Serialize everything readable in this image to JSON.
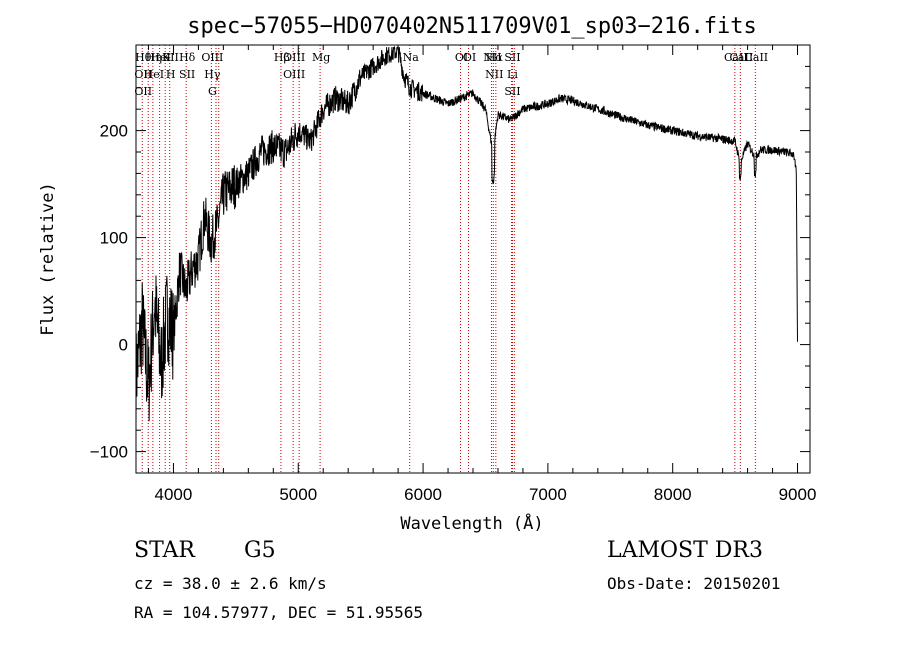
{
  "chart_data": {
    "type": "line",
    "title": "spec−57055−HD070402N511709V01_sp03−216.fits",
    "xlabel": "Wavelength (Å)",
    "ylabel": "Flux (relative)",
    "xlim": [
      3700,
      9100
    ],
    "ylim": [
      -120,
      280
    ],
    "xticks": [
      4000,
      5000,
      6000,
      7000,
      8000,
      9000
    ],
    "yticks": [
      -100,
      0,
      100,
      200
    ],
    "ytick_labels": [
      "−100",
      "0",
      "100",
      "200"
    ],
    "series": [
      {
        "name": "flux",
        "x": [
          3700,
          3750,
          3800,
          3850,
          3900,
          3950,
          4000,
          4050,
          4100,
          4150,
          4200,
          4250,
          4300,
          4350,
          4400,
          4500,
          4600,
          4700,
          4800,
          4900,
          5000,
          5100,
          5200,
          5300,
          5400,
          5500,
          5600,
          5700,
          5800,
          5850,
          5900,
          6000,
          6100,
          6200,
          6300,
          6400,
          6500,
          6560,
          6600,
          6700,
          6800,
          7000,
          7100,
          7200,
          7400,
          7600,
          7800,
          8000,
          8200,
          8400,
          8500,
          8540,
          8600,
          8662,
          8700,
          8800,
          8900,
          8970,
          8990,
          9000
        ],
        "y": [
          -30,
          20,
          -40,
          40,
          -20,
          30,
          10,
          70,
          50,
          70,
          80,
          120,
          95,
          110,
          140,
          150,
          160,
          180,
          185,
          180,
          200,
          190,
          220,
          230,
          225,
          250,
          260,
          270,
          275,
          250,
          240,
          235,
          230,
          225,
          230,
          235,
          220,
          180,
          215,
          210,
          220,
          225,
          230,
          228,
          220,
          212,
          205,
          200,
          195,
          192,
          190,
          170,
          188,
          175,
          182,
          182,
          180,
          178,
          160,
          0
        ]
      }
    ],
    "lines": [
      {
        "wl": 3750,
        "labels": [
          "Hθ",
          "OII",
          "OII"
        ]
      },
      {
        "wl": 3798,
        "labels": []
      },
      {
        "wl": 3835,
        "labels": [
          "Hη",
          "HeI"
        ]
      },
      {
        "wl": 3889,
        "labels": [
          "HeI"
        ]
      },
      {
        "wl": 3934,
        "labels": [
          "K"
        ]
      },
      {
        "wl": 3970,
        "labels": [
          "SII",
          "H"
        ]
      },
      {
        "wl": 4102,
        "labels": [
          "Hδ",
          "SII"
        ]
      },
      {
        "wl": 4304,
        "labels": [
          "OIII",
          "Hγ",
          "G"
        ]
      },
      {
        "wl": 4341,
        "labels": []
      },
      {
        "wl": 4363,
        "labels": []
      },
      {
        "wl": 4861,
        "labels": [
          "Hβ"
        ]
      },
      {
        "wl": 4959,
        "labels": [
          "OIII",
          "OIII"
        ]
      },
      {
        "wl": 5007,
        "labels": []
      },
      {
        "wl": 5175,
        "labels": [
          "Mg"
        ]
      },
      {
        "wl": 5893,
        "labels": [
          "Na"
        ]
      },
      {
        "wl": 6300,
        "labels": [
          "OI"
        ]
      },
      {
        "wl": 6364,
        "labels": [
          "OI"
        ]
      },
      {
        "wl": 6548,
        "labels": [
          "NII"
        ]
      },
      {
        "wl": 6563,
        "labels": [
          "Hα",
          "NII"
        ]
      },
      {
        "wl": 6583,
        "labels": []
      },
      {
        "wl": 6708,
        "labels": [
          "SII",
          "Li",
          "SII"
        ]
      },
      {
        "wl": 6716,
        "labels": []
      },
      {
        "wl": 6731,
        "labels": []
      },
      {
        "wl": 8498,
        "labels": [
          "CaII"
        ]
      },
      {
        "wl": 8542,
        "labels": [
          "CaII"
        ]
      },
      {
        "wl": 8662,
        "labels": [
          "CaII"
        ]
      }
    ]
  },
  "info": {
    "star_type": "STAR",
    "star_class": "G5",
    "survey": "LAMOST DR3",
    "cz": "cz = 38.0 ± 2.6 km/s",
    "obs_date": "Obs-Date: 20150201",
    "radec": "RA = 104.57977, DEC =  51.95565"
  },
  "colors": {
    "axis": "#000000",
    "spectrum": "#000000",
    "emission_line": "#cc0000"
  }
}
